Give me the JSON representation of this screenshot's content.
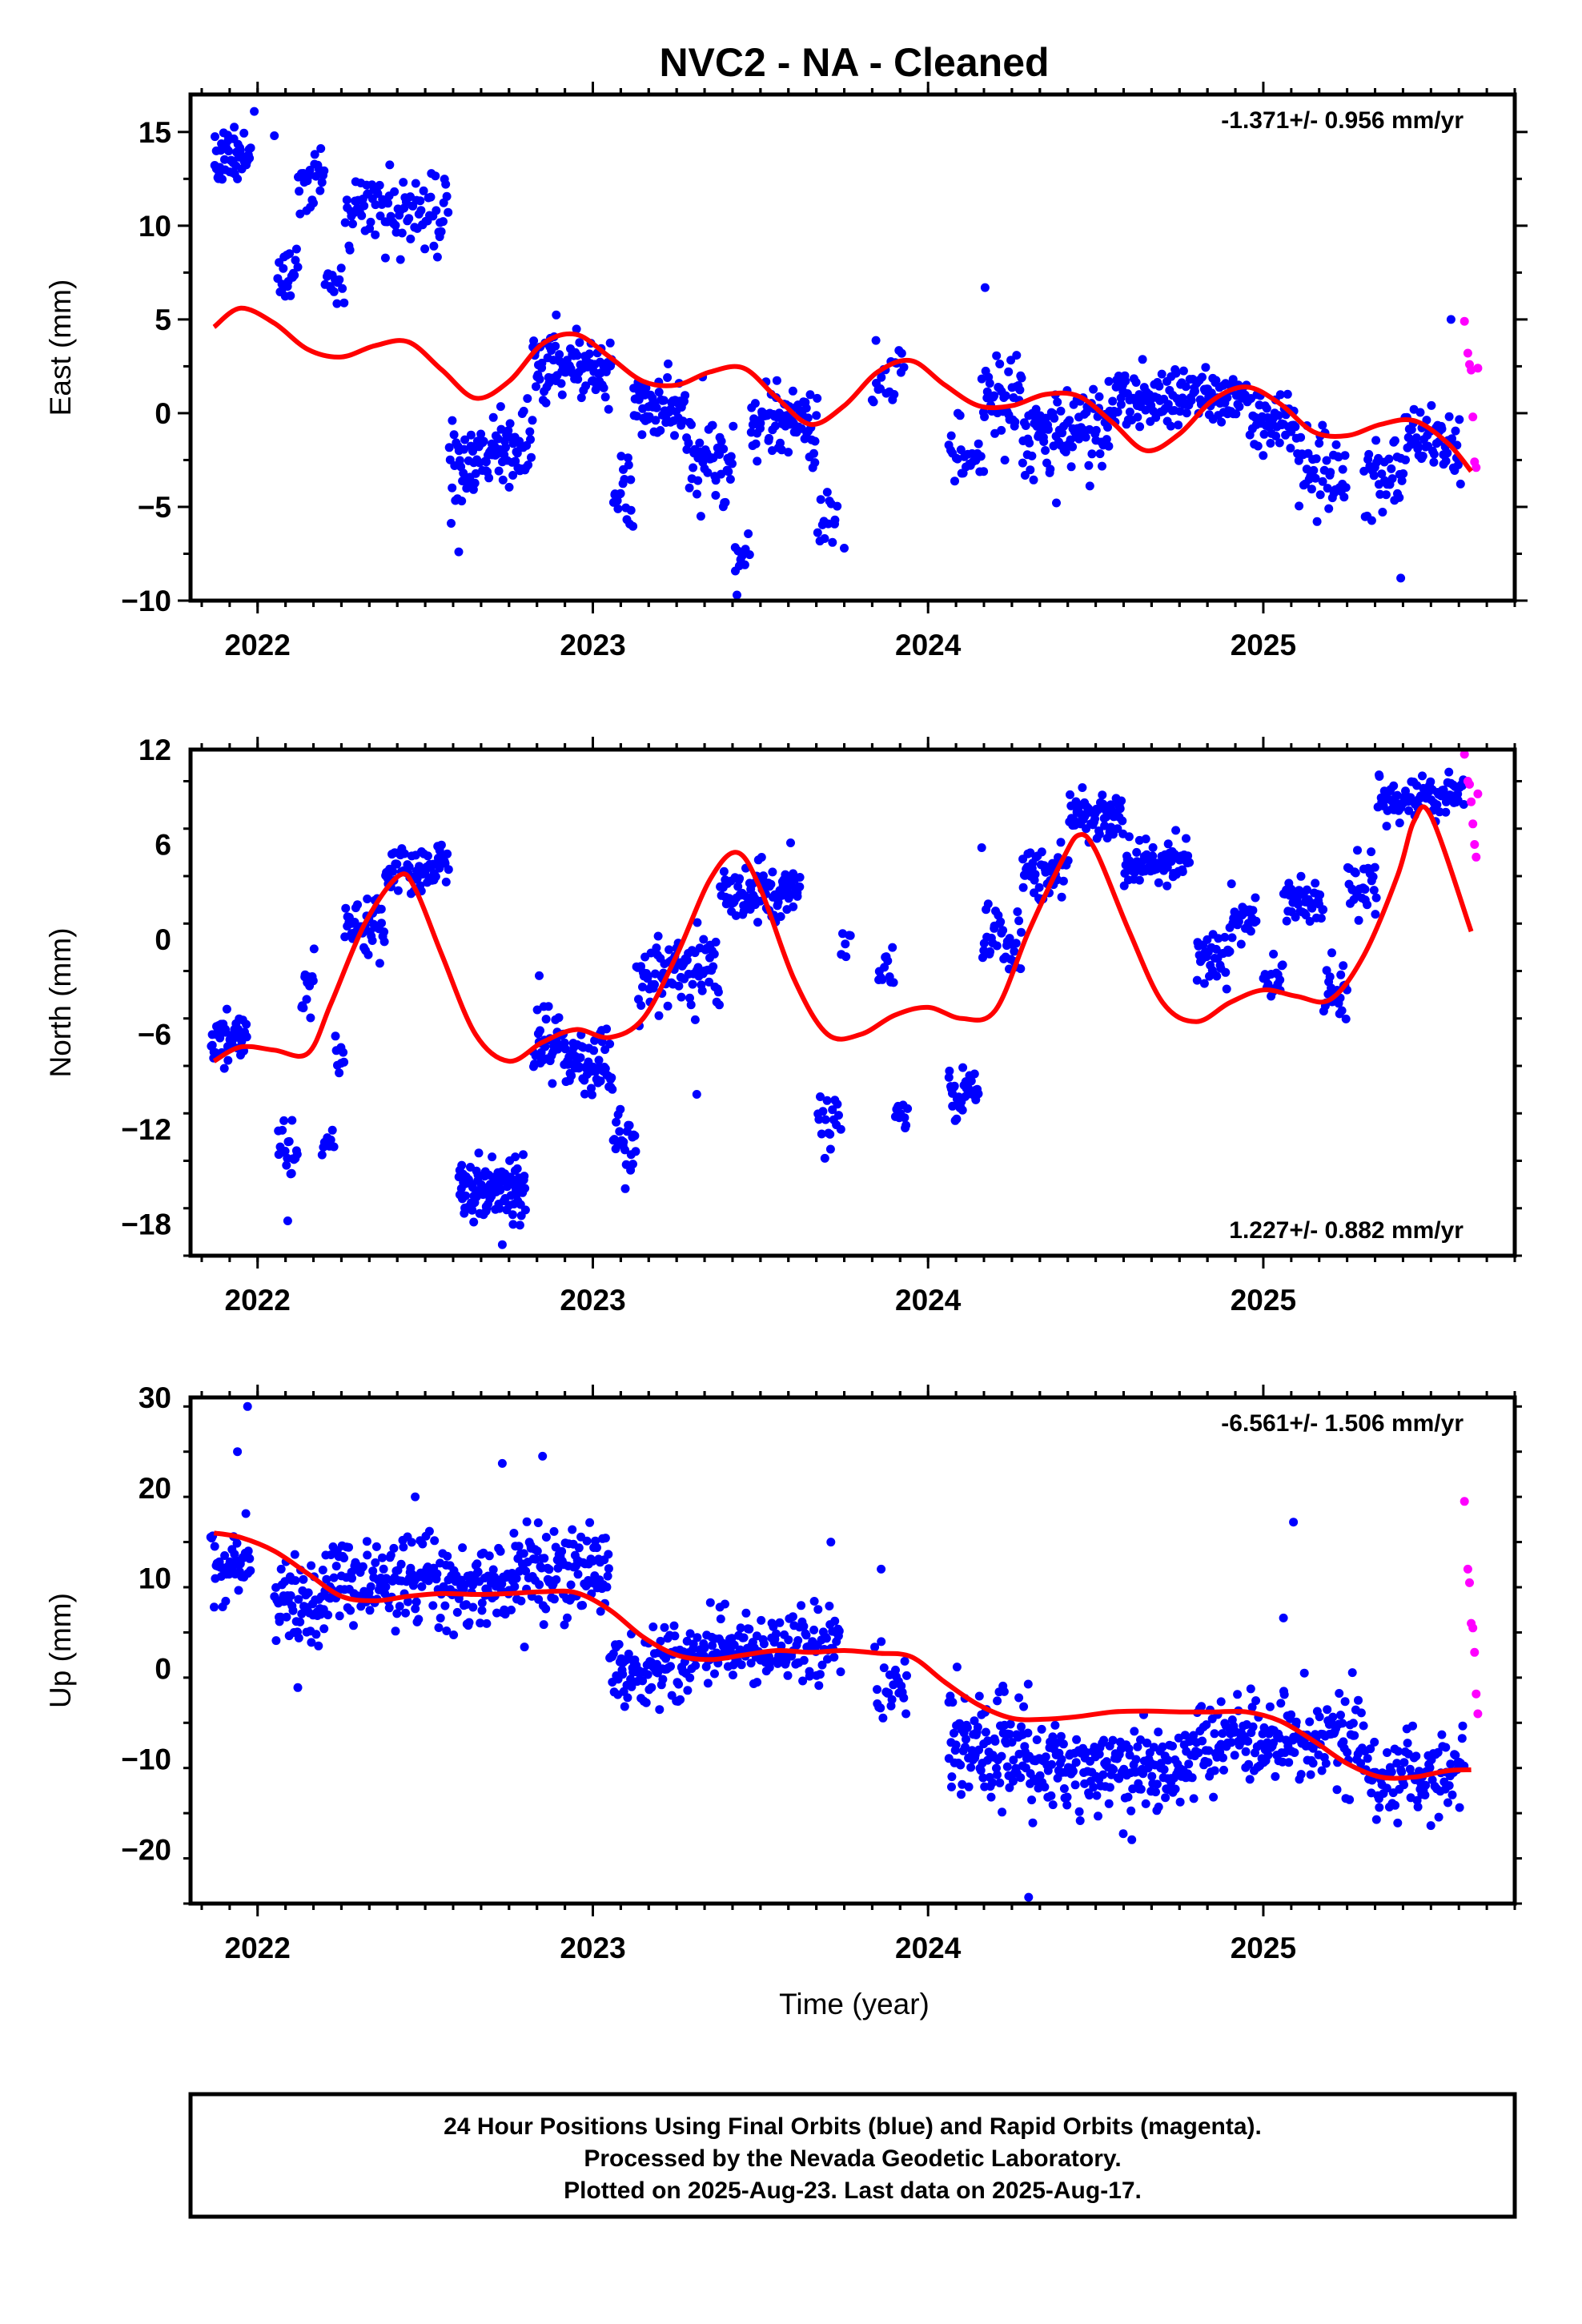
{
  "title": "NVC2  - NA - Cleaned",
  "xlabel": "Time (year)",
  "footer": {
    "line1": "24 Hour Positions Using Final Orbits (blue) and Rapid Orbits (magenta).",
    "line2": "Processed by the Nevada Geodetic Laboratory.",
    "line3": "Plotted on 2025-Aug-23. Last data on 2025-Aug-17."
  },
  "colors": {
    "final": "#0000ff",
    "rapid": "#ff00ff",
    "model": "#ff0000"
  },
  "chart_data": [
    {
      "type": "scatter",
      "name": "east",
      "ylabel": "East (mm)",
      "rate": "-1.371+/- 0.956 mm/yr",
      "rate_position": "top-right",
      "xlim": [
        2021.8,
        2025.75
      ],
      "ylim": [
        -10,
        17
      ],
      "xticks": [
        2022,
        2023,
        2024,
        2025
      ],
      "yticks": [
        15,
        10,
        5,
        0,
        -5,
        -10
      ],
      "model_x": [
        2021.87,
        2021.95,
        2022.05,
        2022.15,
        2022.25,
        2022.35,
        2022.45,
        2022.55,
        2022.65,
        2022.75,
        2022.85,
        2022.95,
        2023.05,
        2023.15,
        2023.25,
        2023.35,
        2023.45,
        2023.55,
        2023.65,
        2023.75,
        2023.85,
        2023.95,
        2024.05,
        2024.15,
        2024.25,
        2024.35,
        2024.45,
        2024.55,
        2024.65,
        2024.75,
        2024.85,
        2024.95,
        2025.05,
        2025.15,
        2025.25,
        2025.35,
        2025.45,
        2025.55,
        2025.62
      ],
      "model_y": [
        4.6,
        5.6,
        4.8,
        3.4,
        3.0,
        3.6,
        3.8,
        2.3,
        0.8,
        1.7,
        3.7,
        4.2,
        3.0,
        1.7,
        1.5,
        2.2,
        2.4,
        0.8,
        -0.6,
        0.4,
        2.2,
        2.8,
        1.5,
        0.4,
        0.4,
        1.0,
        0.9,
        -0.5,
        -2.0,
        -1.1,
        0.7,
        1.4,
        0.5,
        -1.0,
        -1.2,
        -0.6,
        -0.4,
        -1.6,
        -3.1
      ],
      "segments": [
        {
          "x0": 2021.87,
          "x1": 2021.98,
          "mean": 13.5,
          "sd": 1.2,
          "n": 48
        },
        {
          "x0": 2022.06,
          "x1": 2022.12,
          "mean": 7.5,
          "sd": 1.0,
          "n": 20
        },
        {
          "x0": 2022.12,
          "x1": 2022.2,
          "mean": 12.5,
          "sd": 1.2,
          "n": 24
        },
        {
          "x0": 2022.2,
          "x1": 2022.26,
          "mean": 7.0,
          "sd": 1.0,
          "n": 14
        },
        {
          "x0": 2022.26,
          "x1": 2022.57,
          "mean": 10.5,
          "sd": 1.5,
          "n": 95
        },
        {
          "x0": 2022.57,
          "x1": 2022.65,
          "mean": -3.0,
          "sd": 2.0,
          "n": 30
        },
        {
          "x0": 2022.65,
          "x1": 2022.82,
          "mean": -1.8,
          "sd": 1.4,
          "n": 65
        },
        {
          "x0": 2022.82,
          "x1": 2023.06,
          "mean": 2.5,
          "sd": 1.2,
          "n": 95
        },
        {
          "x0": 2023.06,
          "x1": 2023.12,
          "mean": -4.0,
          "sd": 1.4,
          "n": 20
        },
        {
          "x0": 2023.12,
          "x1": 2023.28,
          "mean": 0.3,
          "sd": 1.3,
          "n": 60
        },
        {
          "x0": 2023.28,
          "x1": 2023.42,
          "mean": -2.5,
          "sd": 1.6,
          "n": 50
        },
        {
          "x0": 2023.42,
          "x1": 2023.47,
          "mean": -7.5,
          "sd": 1.2,
          "n": 10
        },
        {
          "x0": 2023.47,
          "x1": 2023.67,
          "mean": -0.3,
          "sd": 1.5,
          "n": 80
        },
        {
          "x0": 2023.67,
          "x1": 2023.73,
          "mean": -5.5,
          "sd": 1.0,
          "n": 14
        },
        {
          "x0": 2023.83,
          "x1": 2023.93,
          "mean": 1.5,
          "sd": 1.2,
          "n": 20
        },
        {
          "x0": 2024.06,
          "x1": 2024.16,
          "mean": -2.5,
          "sd": 1.3,
          "n": 25
        },
        {
          "x0": 2024.16,
          "x1": 2024.28,
          "mean": 0.8,
          "sd": 1.5,
          "n": 45
        },
        {
          "x0": 2024.28,
          "x1": 2024.55,
          "mean": -1.0,
          "sd": 1.6,
          "n": 100
        },
        {
          "x0": 2024.55,
          "x1": 2024.95,
          "mean": 0.8,
          "sd": 1.1,
          "n": 140
        },
        {
          "x0": 2024.95,
          "x1": 2025.1,
          "mean": -0.5,
          "sd": 1.2,
          "n": 50
        },
        {
          "x0": 2025.1,
          "x1": 2025.25,
          "mean": -3.0,
          "sd": 1.5,
          "n": 45
        },
        {
          "x0": 2025.3,
          "x1": 2025.42,
          "mean": -3.5,
          "sd": 1.6,
          "n": 35
        },
        {
          "x0": 2025.42,
          "x1": 2025.59,
          "mean": -1.5,
          "sd": 1.3,
          "n": 55
        }
      ],
      "extra_points": [
        [
          2021.99,
          16.1
        ],
        [
          2022.05,
          14.8
        ],
        [
          2024.17,
          6.7
        ],
        [
          2025.56,
          5.0
        ],
        [
          2023.43,
          -9.7
        ],
        [
          2025.41,
          -8.8
        ],
        [
          2022.6,
          -7.4
        ],
        [
          2023.75,
          -7.2
        ]
      ],
      "rapid_x": [
        2025.6,
        2025.61,
        2025.615,
        2025.62,
        2025.625,
        2025.63,
        2025.635,
        2025.64
      ],
      "rapid_y": [
        4.9,
        3.2,
        2.6,
        2.3,
        -0.2,
        -2.6,
        -2.9,
        2.4
      ]
    },
    {
      "type": "scatter",
      "name": "north",
      "ylabel": "North (mm)",
      "rate": "1.227+/- 0.882 mm/yr",
      "rate_position": "bottom-right",
      "xlim": [
        2021.8,
        2025.75
      ],
      "ylim": [
        -20,
        12
      ],
      "xticks": [
        2022,
        2023,
        2024,
        2025
      ],
      "yticks": [
        12,
        6,
        0,
        -6,
        -12,
        -18
      ],
      "model_x": [
        2021.87,
        2021.95,
        2022.05,
        2022.15,
        2022.22,
        2022.32,
        2022.42,
        2022.47,
        2022.55,
        2022.65,
        2022.75,
        2022.85,
        2022.95,
        2023.05,
        2023.15,
        2023.25,
        2023.35,
        2023.43,
        2023.5,
        2023.6,
        2023.7,
        2023.8,
        2023.9,
        2024.0,
        2024.1,
        2024.2,
        2024.3,
        2024.4,
        2024.45,
        2024.5,
        2024.6,
        2024.7,
        2024.8,
        2024.9,
        2025.0,
        2025.1,
        2025.2,
        2025.3,
        2025.4,
        2025.45,
        2025.5,
        2025.62
      ],
      "model_y": [
        -7.7,
        -6.8,
        -7.0,
        -7.2,
        -4.0,
        1.0,
        4.0,
        3.2,
        -1.0,
        -6.0,
        -7.7,
        -6.5,
        -5.7,
        -6.2,
        -5.0,
        -1.0,
        3.8,
        5.5,
        3.2,
        -2.5,
        -6.0,
        -6.0,
        -4.8,
        -4.3,
        -5.0,
        -4.5,
        0.5,
        5.0,
        6.6,
        5.6,
        0.5,
        -4.0,
        -5.2,
        -4.0,
        -3.2,
        -3.6,
        -3.8,
        -1.0,
        4.0,
        7.5,
        7.8,
        0.5
      ],
      "segments": [
        {
          "x0": 2021.86,
          "x1": 2021.97,
          "mean": -6.3,
          "sd": 1.0,
          "n": 45
        },
        {
          "x0": 2022.06,
          "x1": 2022.12,
          "mean": -13.2,
          "sd": 1.4,
          "n": 20
        },
        {
          "x0": 2022.13,
          "x1": 2022.17,
          "mean": -3.0,
          "sd": 1.5,
          "n": 14
        },
        {
          "x0": 2022.19,
          "x1": 2022.23,
          "mean": -12.8,
          "sd": 0.7,
          "n": 10
        },
        {
          "x0": 2022.23,
          "x1": 2022.26,
          "mean": -7.3,
          "sd": 0.8,
          "n": 8
        },
        {
          "x0": 2022.26,
          "x1": 2022.38,
          "mean": 0.8,
          "sd": 1.5,
          "n": 45
        },
        {
          "x0": 2022.38,
          "x1": 2022.57,
          "mean": 4.4,
          "sd": 1.0,
          "n": 70
        },
        {
          "x0": 2022.6,
          "x1": 2022.8,
          "mean": -15.7,
          "sd": 1.3,
          "n": 120
        },
        {
          "x0": 2022.82,
          "x1": 2022.92,
          "mean": -6.5,
          "sd": 1.3,
          "n": 40
        },
        {
          "x0": 2022.92,
          "x1": 2023.06,
          "mean": -8.0,
          "sd": 1.4,
          "n": 60
        },
        {
          "x0": 2023.06,
          "x1": 2023.13,
          "mean": -13.0,
          "sd": 1.2,
          "n": 25
        },
        {
          "x0": 2023.13,
          "x1": 2023.38,
          "mean": -2.0,
          "sd": 1.6,
          "n": 90
        },
        {
          "x0": 2023.38,
          "x1": 2023.62,
          "mean": 3.0,
          "sd": 1.2,
          "n": 95
        },
        {
          "x0": 2023.67,
          "x1": 2023.74,
          "mean": -11.5,
          "sd": 1.1,
          "n": 18
        },
        {
          "x0": 2023.74,
          "x1": 2023.77,
          "mean": -1.0,
          "sd": 1.0,
          "n": 6
        },
        {
          "x0": 2023.85,
          "x1": 2023.9,
          "mean": -2.0,
          "sd": 1.5,
          "n": 12
        },
        {
          "x0": 2023.9,
          "x1": 2023.94,
          "mean": -11.3,
          "sd": 1.0,
          "n": 12
        },
        {
          "x0": 2024.06,
          "x1": 2024.15,
          "mean": -9.8,
          "sd": 1.2,
          "n": 35
        },
        {
          "x0": 2024.16,
          "x1": 2024.28,
          "mean": 0.0,
          "sd": 1.3,
          "n": 35
        },
        {
          "x0": 2024.28,
          "x1": 2024.42,
          "mean": 4.3,
          "sd": 1.2,
          "n": 50
        },
        {
          "x0": 2024.42,
          "x1": 2024.58,
          "mean": 7.8,
          "sd": 0.9,
          "n": 65
        },
        {
          "x0": 2024.58,
          "x1": 2024.78,
          "mean": 5.0,
          "sd": 1.0,
          "n": 75
        },
        {
          "x0": 2024.8,
          "x1": 2024.9,
          "mean": -1.5,
          "sd": 1.3,
          "n": 35
        },
        {
          "x0": 2024.9,
          "x1": 2024.98,
          "mean": 1.2,
          "sd": 1.0,
          "n": 30
        },
        {
          "x0": 2025.0,
          "x1": 2025.06,
          "mean": -2.5,
          "sd": 1.2,
          "n": 18
        },
        {
          "x0": 2025.06,
          "x1": 2025.18,
          "mean": 2.5,
          "sd": 0.9,
          "n": 40
        },
        {
          "x0": 2025.18,
          "x1": 2025.25,
          "mean": -3.5,
          "sd": 1.2,
          "n": 25
        },
        {
          "x0": 2025.25,
          "x1": 2025.34,
          "mean": 3.5,
          "sd": 1.5,
          "n": 30
        },
        {
          "x0": 2025.34,
          "x1": 2025.6,
          "mean": 9.0,
          "sd": 0.9,
          "n": 90
        }
      ],
      "extra_points": [
        [
          2022.09,
          -17.8
        ],
        [
          2022.73,
          -19.3
        ],
        [
          2023.59,
          6.1
        ],
        [
          2024.16,
          5.8
        ],
        [
          2022.84,
          -2.3
        ],
        [
          2023.31,
          -9.8
        ]
      ],
      "rapid_x": [
        2025.6,
        2025.61,
        2025.615,
        2025.62,
        2025.625,
        2025.63,
        2025.635,
        2025.64
      ],
      "rapid_y": [
        11.7,
        10.0,
        9.8,
        8.7,
        7.3,
        6.0,
        5.2,
        9.2
      ]
    },
    {
      "type": "scatter",
      "name": "up",
      "ylabel": "Up (mm)",
      "rate": "-6.561+/- 1.506 mm/yr",
      "rate_position": "top-right",
      "xlim": [
        2021.8,
        2025.75
      ],
      "ylim": [
        -26,
        30
      ],
      "xticks": [
        2022,
        2023,
        2024,
        2025
      ],
      "yticks": [
        30,
        20,
        10,
        0,
        -10,
        -20
      ],
      "model_x": [
        2021.87,
        2021.95,
        2022.05,
        2022.15,
        2022.25,
        2022.35,
        2022.45,
        2022.55,
        2022.65,
        2022.75,
        2022.85,
        2022.95,
        2023.05,
        2023.15,
        2023.25,
        2023.35,
        2023.45,
        2023.55,
        2023.65,
        2023.75,
        2023.85,
        2023.95,
        2024.05,
        2024.15,
        2024.25,
        2024.35,
        2024.45,
        2024.55,
        2024.65,
        2024.75,
        2024.85,
        2024.95,
        2025.05,
        2025.15,
        2025.25,
        2025.35,
        2025.45,
        2025.55,
        2025.62
      ],
      "model_y": [
        15.0,
        14.5,
        13.0,
        10.5,
        8.0,
        7.5,
        8.0,
        8.3,
        8.2,
        8.3,
        8.5,
        8.4,
        6.5,
        3.5,
        1.5,
        1.0,
        1.5,
        2.0,
        1.8,
        2.0,
        1.7,
        1.3,
        -1.5,
        -4.0,
        -5.5,
        -5.6,
        -5.3,
        -4.8,
        -4.7,
        -4.8,
        -4.8,
        -4.8,
        -5.8,
        -8.0,
        -10.5,
        -12.0,
        -12.0,
        -11.3,
        -11.2
      ],
      "segments": [
        {
          "x0": 2021.86,
          "x1": 2021.98,
          "mean": 11.5,
          "sd": 3.0,
          "n": 45
        },
        {
          "x0": 2022.05,
          "x1": 2022.2,
          "mean": 7.0,
          "sd": 3.3,
          "n": 60
        },
        {
          "x0": 2022.2,
          "x1": 2022.55,
          "mean": 9.5,
          "sd": 3.3,
          "n": 130
        },
        {
          "x0": 2022.55,
          "x1": 2022.75,
          "mean": 9.0,
          "sd": 3.3,
          "n": 80
        },
        {
          "x0": 2022.75,
          "x1": 2023.05,
          "mean": 11.0,
          "sd": 3.5,
          "n": 120
        },
        {
          "x0": 2023.05,
          "x1": 2023.3,
          "mean": 0.5,
          "sd": 3.2,
          "n": 100
        },
        {
          "x0": 2023.3,
          "x1": 2023.74,
          "mean": 2.5,
          "sd": 3.0,
          "n": 160
        },
        {
          "x0": 2023.84,
          "x1": 2023.94,
          "mean": -3.0,
          "sd": 3.0,
          "n": 25
        },
        {
          "x0": 2024.06,
          "x1": 2024.3,
          "mean": -8.5,
          "sd": 3.8,
          "n": 110
        },
        {
          "x0": 2024.3,
          "x1": 2024.8,
          "mean": -11.0,
          "sd": 3.3,
          "n": 200
        },
        {
          "x0": 2024.8,
          "x1": 2025.1,
          "mean": -8.0,
          "sd": 3.3,
          "n": 110
        },
        {
          "x0": 2025.1,
          "x1": 2025.3,
          "mean": -7.5,
          "sd": 3.5,
          "n": 70
        },
        {
          "x0": 2025.3,
          "x1": 2025.6,
          "mean": -11.5,
          "sd": 3.0,
          "n": 100
        }
      ],
      "extra_points": [
        [
          2021.97,
          29.0
        ],
        [
          2021.94,
          24.0
        ],
        [
          2022.47,
          19.0
        ],
        [
          2022.73,
          22.7
        ],
        [
          2022.85,
          23.5
        ],
        [
          2023.71,
          14.0
        ],
        [
          2025.09,
          16.2
        ],
        [
          2024.3,
          -25.3
        ],
        [
          2023.86,
          11.0
        ],
        [
          2022.12,
          -2.1
        ],
        [
          2025.06,
          5.6
        ]
      ],
      "rapid_x": [
        2025.6,
        2025.61,
        2025.615,
        2025.62,
        2025.625,
        2025.63,
        2025.635,
        2025.64
      ],
      "rapid_y": [
        18.5,
        11.0,
        9.5,
        5.0,
        4.5,
        1.8,
        -2.8,
        -5.0
      ]
    }
  ]
}
